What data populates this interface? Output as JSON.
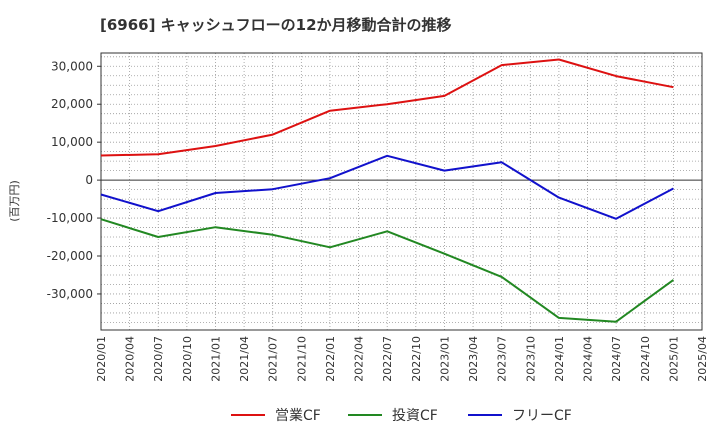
{
  "chart_data": {
    "type": "line",
    "title": "[6966]  キャッシュフローの12か月移動合計の推移",
    "ylabel": "(百万円)",
    "xlabel": "",
    "ylim": [
      -39500,
      33500
    ],
    "y_ticks": [
      30000,
      20000,
      10000,
      0,
      -10000,
      -20000,
      -30000
    ],
    "y_tick_labels": [
      "30,000",
      "20,000",
      "10,000",
      "0",
      "-10,000",
      "-20,000",
      "-30,000"
    ],
    "x_tick_labels": [
      "2020/01",
      "2020/04",
      "2020/07",
      "2020/10",
      "2021/01",
      "2021/04",
      "2021/07",
      "2021/10",
      "2022/01",
      "2022/04",
      "2022/07",
      "2022/10",
      "2023/01",
      "2023/04",
      "2023/07",
      "2023/10",
      "2024/01",
      "2024/04",
      "2024/07",
      "2024/10",
      "2025/01",
      "2025/04"
    ],
    "grid": true,
    "legend_position": "bottom",
    "series": [
      {
        "name": "営業CF",
        "color": "#dd1111",
        "points": [
          {
            "x": "2020/01",
            "y": 6500
          },
          {
            "x": "2020/07",
            "y": 6800
          },
          {
            "x": "2021/01",
            "y": 9000
          },
          {
            "x": "2021/07",
            "y": 12000
          },
          {
            "x": "2022/01",
            "y": 18300
          },
          {
            "x": "2022/07",
            "y": 20000
          },
          {
            "x": "2023/01",
            "y": 22200
          },
          {
            "x": "2023/07",
            "y": 30300
          },
          {
            "x": "2024/01",
            "y": 31800
          },
          {
            "x": "2024/07",
            "y": 27400
          },
          {
            "x": "2025/01",
            "y": 24500
          }
        ]
      },
      {
        "name": "投資CF",
        "color": "#228822",
        "points": [
          {
            "x": "2020/01",
            "y": -10300
          },
          {
            "x": "2020/07",
            "y": -15000
          },
          {
            "x": "2021/01",
            "y": -12400
          },
          {
            "x": "2021/07",
            "y": -14400
          },
          {
            "x": "2022/01",
            "y": -17700
          },
          {
            "x": "2022/07",
            "y": -13500
          },
          {
            "x": "2023/01",
            "y": -19400
          },
          {
            "x": "2023/07",
            "y": -25500
          },
          {
            "x": "2024/01",
            "y": -36300
          },
          {
            "x": "2024/07",
            "y": -37300
          },
          {
            "x": "2025/01",
            "y": -26300
          }
        ]
      },
      {
        "name": "フリーCF",
        "color": "#1111cc",
        "points": [
          {
            "x": "2020/01",
            "y": -3800
          },
          {
            "x": "2020/07",
            "y": -8200
          },
          {
            "x": "2021/01",
            "y": -3400
          },
          {
            "x": "2021/07",
            "y": -2400
          },
          {
            "x": "2022/01",
            "y": 500
          },
          {
            "x": "2022/07",
            "y": 6400
          },
          {
            "x": "2023/01",
            "y": 2500
          },
          {
            "x": "2023/07",
            "y": 4700
          },
          {
            "x": "2024/01",
            "y": -4600
          },
          {
            "x": "2024/07",
            "y": -10200
          },
          {
            "x": "2025/01",
            "y": -2200
          }
        ]
      }
    ]
  }
}
